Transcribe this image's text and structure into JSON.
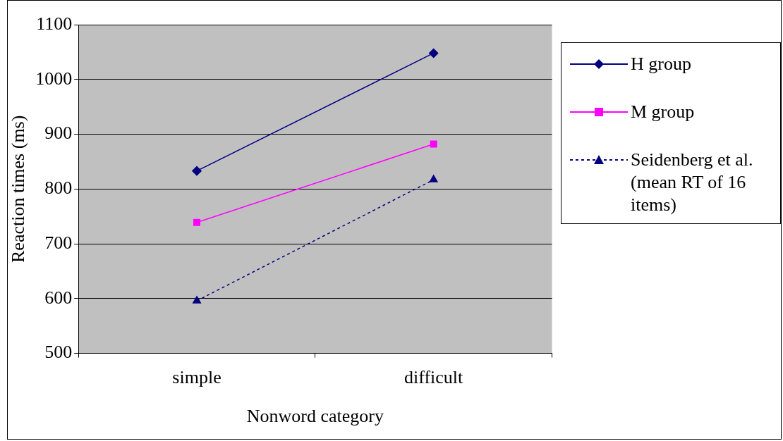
{
  "chart_data": {
    "type": "line",
    "xlabel": "Nonword category",
    "ylabel": "Reaction times (ms)",
    "categories": [
      "simple",
      "difficult"
    ],
    "ylim": [
      500,
      1100
    ],
    "yticks": [
      500,
      600,
      700,
      800,
      900,
      1000,
      1100
    ],
    "grid": "y",
    "legend": "right",
    "series": [
      {
        "name": "H group",
        "color": "#000080",
        "values": [
          833,
          1048
        ],
        "marker": "diamond",
        "line_style": "solid"
      },
      {
        "name": "M group",
        "color": "#ff00ff",
        "values": [
          739,
          882
        ],
        "marker": "square",
        "line_style": "solid"
      },
      {
        "name": "Seidenberg et al. (mean RT of 16 items)",
        "color": "#000080",
        "values": [
          596,
          817
        ],
        "marker": "triangle",
        "line_style": "dashed"
      }
    ]
  }
}
